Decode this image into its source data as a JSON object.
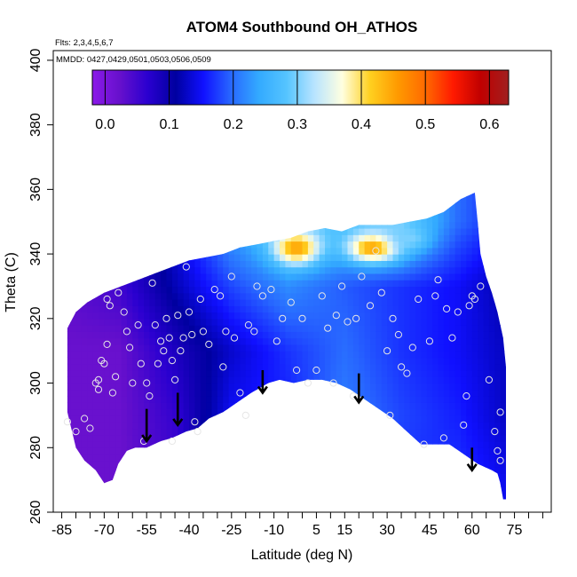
{
  "chart_data": {
    "type": "heatmap",
    "title": "ATOM4 Southbound OH_ATHOS",
    "flights_note": "Flts: 2,3,4,5,6,7",
    "dates_note": "MMDD: 0427,0429,0501,0503,0506,0509",
    "xlabel": "Latitude (deg N)",
    "ylabel": "Theta (C)",
    "xlim": [
      -88,
      88
    ],
    "ylim": [
      260,
      403
    ],
    "x_major_ticks": [
      -85,
      -70,
      -55,
      -40,
      -25,
      -10,
      5,
      15,
      30,
      45,
      60,
      75
    ],
    "x_minor_step": 5,
    "y_ticks": [
      260,
      280,
      300,
      320,
      340,
      360,
      380,
      400
    ],
    "colorbar": {
      "range": [
        -0.02,
        0.63
      ],
      "ticks": [
        0.0,
        0.1,
        0.2,
        0.3,
        0.4,
        0.5,
        0.6
      ],
      "tick_labels": [
        "0.0",
        "0.1",
        "0.2",
        "0.3",
        "0.4",
        "0.5",
        "0.6"
      ],
      "colors": [
        "#8b1ae8",
        "#6610cc",
        "#2a00d0",
        "#0000a0",
        "#1010ff",
        "#2868ff",
        "#33aaff",
        "#55c4ff",
        "#b8e4ff",
        "#ffffe0",
        "#ffd020",
        "#ff9a00",
        "#ff6a00",
        "#ff1a00",
        "#c00000",
        "#a02020"
      ]
    },
    "colorbar_box": [
      0.0,
      0.1,
      0.2,
      0.3,
      0.4,
      0.5,
      0.6
    ],
    "boundary": {
      "bottom": [
        [
          -83,
          291
        ],
        [
          -80,
          280
        ],
        [
          -77,
          276
        ],
        [
          -73,
          273
        ],
        [
          -70,
          269
        ],
        [
          -67,
          270
        ],
        [
          -65,
          275
        ],
        [
          -62,
          279
        ],
        [
          -59,
          280
        ],
        [
          -55,
          280
        ],
        [
          -50,
          282
        ],
        [
          -46,
          283
        ],
        [
          -41,
          285
        ],
        [
          -37,
          286
        ],
        [
          -33,
          289
        ],
        [
          -28,
          291
        ],
        [
          -23,
          294
        ],
        [
          -18,
          297
        ],
        [
          -12,
          300
        ],
        [
          -8,
          301
        ],
        [
          -3,
          300
        ],
        [
          2,
          301
        ],
        [
          7,
          301
        ],
        [
          12,
          300
        ],
        [
          17,
          298
        ],
        [
          22,
          295
        ],
        [
          27,
          292
        ],
        [
          32,
          289
        ],
        [
          37,
          285
        ],
        [
          42,
          281
        ],
        [
          47,
          281
        ],
        [
          52,
          281
        ],
        [
          57,
          278
        ],
        [
          62,
          275
        ],
        [
          67,
          273
        ],
        [
          69,
          272
        ],
        [
          70,
          269
        ],
        [
          71,
          264
        ]
      ],
      "top": [
        [
          72,
          264
        ],
        [
          72,
          305
        ],
        [
          71,
          314
        ],
        [
          69,
          322
        ],
        [
          67,
          328
        ],
        [
          65,
          333
        ],
        [
          63,
          340
        ],
        [
          62,
          350
        ],
        [
          61,
          359
        ],
        [
          56,
          357
        ],
        [
          50,
          353
        ],
        [
          44,
          351
        ],
        [
          38,
          350
        ],
        [
          32,
          349
        ],
        [
          26,
          349
        ],
        [
          20,
          349
        ],
        [
          14,
          347
        ],
        [
          8,
          348
        ],
        [
          2,
          347
        ],
        [
          -4,
          345
        ],
        [
          -10,
          344
        ],
        [
          -16,
          343
        ],
        [
          -22,
          342
        ],
        [
          -28,
          340
        ],
        [
          -34,
          339
        ],
        [
          -40,
          338
        ],
        [
          -46,
          336
        ],
        [
          -52,
          334
        ],
        [
          -58,
          332
        ],
        [
          -64,
          330
        ],
        [
          -70,
          328
        ],
        [
          -76,
          325
        ],
        [
          -80,
          322
        ],
        [
          -83,
          317
        ]
      ]
    },
    "value_grid": {
      "lat": [
        -85,
        -65,
        -45,
        -25,
        -5,
        15,
        35,
        55,
        75
      ],
      "theta": [
        270,
        290,
        310,
        330,
        350
      ],
      "values": [
        [
          0.02,
          0.02,
          0.05,
          0.18,
          0.18,
          0.18,
          0.17,
          0.17,
          0.14
        ],
        [
          0.02,
          0.02,
          0.06,
          0.15,
          0.16,
          0.21,
          0.18,
          0.16,
          0.12
        ],
        [
          0.02,
          0.02,
          0.08,
          0.13,
          0.17,
          0.2,
          0.17,
          0.15,
          0.12
        ],
        [
          0.03,
          0.05,
          0.12,
          0.18,
          0.22,
          0.19,
          0.17,
          0.15,
          0.11
        ],
        [
          0.03,
          0.06,
          0.14,
          0.24,
          0.3,
          0.28,
          0.3,
          0.2,
          0.15
        ]
      ]
    },
    "hotspots": [
      {
        "lat": -2,
        "theta": 342,
        "value": 0.45,
        "radius_lat": 8,
        "radius_theta": 5
      },
      {
        "lat": 25,
        "theta": 342,
        "value": 0.45,
        "radius_lat": 9,
        "radius_theta": 4.5
      },
      {
        "lat": 38,
        "theta": 345,
        "value": 0.3,
        "radius_lat": 7,
        "radius_theta": 4
      }
    ],
    "observation_points": [
      [
        -83,
        288
      ],
      [
        -80,
        285
      ],
      [
        -77,
        289
      ],
      [
        -75,
        286
      ],
      [
        -73,
        300
      ],
      [
        -72,
        298
      ],
      [
        -72,
        301
      ],
      [
        -71,
        307
      ],
      [
        -70,
        306
      ],
      [
        -69,
        326
      ],
      [
        -69,
        312
      ],
      [
        -68,
        324
      ],
      [
        -67,
        297
      ],
      [
        -66,
        302
      ],
      [
        -65,
        328
      ],
      [
        -63,
        322
      ],
      [
        -62,
        316
      ],
      [
        -61,
        311
      ],
      [
        -60,
        300
      ],
      [
        -58,
        318
      ],
      [
        -57,
        306
      ],
      [
        -56,
        282
      ],
      [
        -55,
        300
      ],
      [
        -54,
        296
      ],
      [
        -53,
        331
      ],
      [
        -52,
        318
      ],
      [
        -51,
        306
      ],
      [
        -50,
        313
      ],
      [
        -49,
        310
      ],
      [
        -48,
        320
      ],
      [
        -47,
        314
      ],
      [
        -46,
        307
      ],
      [
        -46,
        282
      ],
      [
        -45,
        301
      ],
      [
        -44,
        321
      ],
      [
        -43,
        310
      ],
      [
        -42,
        314
      ],
      [
        -41,
        336
      ],
      [
        -40,
        322
      ],
      [
        -39,
        315
      ],
      [
        -38,
        288
      ],
      [
        -37,
        285
      ],
      [
        -36,
        326
      ],
      [
        -35,
        316
      ],
      [
        -33,
        312
      ],
      [
        -31,
        329
      ],
      [
        -29,
        327
      ],
      [
        -28,
        305
      ],
      [
        -27,
        316
      ],
      [
        -25,
        333
      ],
      [
        -24,
        314
      ],
      [
        -22,
        297
      ],
      [
        -20,
        290
      ],
      [
        -19,
        318
      ],
      [
        -17,
        316
      ],
      [
        -16,
        330
      ],
      [
        -14,
        327
      ],
      [
        -11,
        329
      ],
      [
        -9,
        313
      ],
      [
        -7,
        320
      ],
      [
        -4,
        325
      ],
      [
        -2,
        304
      ],
      [
        0,
        320
      ],
      [
        2,
        300
      ],
      [
        5,
        304
      ],
      [
        7,
        327
      ],
      [
        9,
        317
      ],
      [
        11,
        300
      ],
      [
        12,
        321
      ],
      [
        14,
        330
      ],
      [
        16,
        319
      ],
      [
        18,
        296
      ],
      [
        19,
        320
      ],
      [
        21,
        333
      ],
      [
        24,
        324
      ],
      [
        26,
        341
      ],
      [
        28,
        328
      ],
      [
        30,
        310
      ],
      [
        31,
        290
      ],
      [
        32,
        320
      ],
      [
        34,
        315
      ],
      [
        35,
        305
      ],
      [
        37,
        303
      ],
      [
        39,
        311
      ],
      [
        41,
        326
      ],
      [
        43,
        281
      ],
      [
        45,
        313
      ],
      [
        47,
        327
      ],
      [
        48,
        332
      ],
      [
        50,
        283
      ],
      [
        51,
        323
      ],
      [
        53,
        314
      ],
      [
        55,
        322
      ],
      [
        57,
        287
      ],
      [
        58,
        296
      ],
      [
        59,
        324
      ],
      [
        60,
        327
      ],
      [
        61,
        326
      ],
      [
        63,
        330
      ],
      [
        66,
        301
      ],
      [
        68,
        285
      ],
      [
        69,
        279
      ],
      [
        70,
        291
      ],
      [
        70,
        276
      ]
    ],
    "arrows": [
      {
        "lat": -55,
        "theta_start": 292,
        "theta_end": 282
      },
      {
        "lat": -44,
        "theta_start": 297,
        "theta_end": 287
      },
      {
        "lat": -14,
        "theta_start": 304,
        "theta_end": 297
      },
      {
        "lat": 20,
        "theta_start": 303,
        "theta_end": 294
      },
      {
        "lat": 60,
        "theta_start": 280,
        "theta_end": 273
      }
    ]
  }
}
